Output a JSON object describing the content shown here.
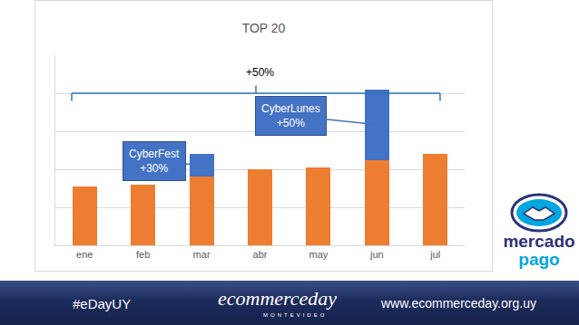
{
  "chart_data": {
    "type": "bar",
    "title": "TOP 20",
    "categories": [
      "ene",
      "feb",
      "mar",
      "abr",
      "may",
      "jun",
      "jul"
    ],
    "series": [
      {
        "color": "#ED7D31",
        "values": [
          1.55,
          1.6,
          1.8,
          2.0,
          2.05,
          2.25,
          2.4
        ]
      },
      {
        "color": "#4472C4",
        "values": [
          null,
          null,
          0.6,
          null,
          null,
          1.85,
          null
        ]
      }
    ],
    "stacked": true,
    "ylim": [
      0,
      5
    ],
    "yticks": [
      0,
      1,
      2,
      3,
      4
    ],
    "grid": true,
    "tick_labels": "x",
    "annotations": [
      {
        "text": "CyberFest\n+30%",
        "category": "mar"
      },
      {
        "text": "CyberLunes\n+50%",
        "category": "jun"
      },
      {
        "text": "+50%"
      }
    ]
  },
  "footer": {
    "hashtag": "#eDayUY",
    "logo": "ecommerceday",
    "logo_subtitle": "MONTEVIDEO",
    "url": "www.ecommerceday.org.uy"
  },
  "sponsor": {
    "line1": "mercado",
    "line2": "pago"
  }
}
